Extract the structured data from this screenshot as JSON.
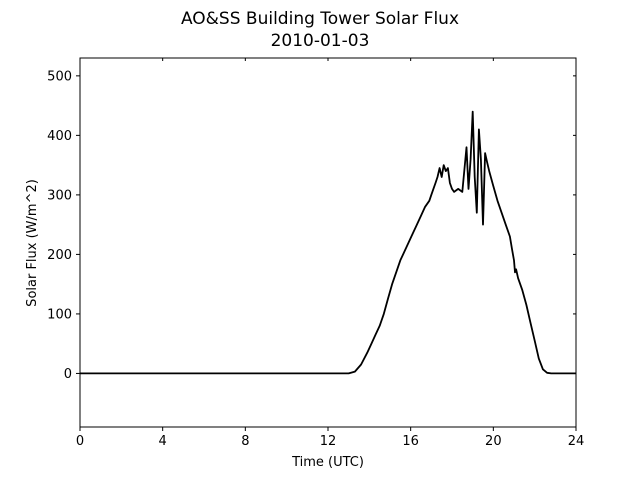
{
  "chart_data": {
    "type": "line",
    "title": "AO&SS Building Tower Solar Flux",
    "subtitle": "2010-01-03",
    "xlabel": "Time (UTC)",
    "ylabel": "Solar Flux (W/m^2)",
    "xlim": [
      0,
      24
    ],
    "ylim": [
      -90,
      530
    ],
    "xticks": [
      0,
      4,
      8,
      12,
      16,
      20,
      24
    ],
    "yticks": [
      0,
      100,
      200,
      300,
      400,
      500
    ],
    "grid": false,
    "line_color": "#000000",
    "series": [
      {
        "x": [
          0,
          13.0,
          13.3,
          13.6,
          13.9,
          14.1,
          14.3,
          14.5,
          14.7,
          14.9,
          15.1,
          15.3,
          15.5,
          15.7,
          15.9,
          16.1,
          16.3,
          16.5,
          16.7,
          16.9,
          17.0,
          17.1,
          17.2,
          17.3,
          17.4,
          17.5,
          17.6,
          17.7,
          17.8,
          17.9,
          18.0,
          18.1,
          18.3,
          18.5,
          18.7,
          18.8,
          18.9,
          19.0,
          19.1,
          19.2,
          19.3,
          19.4,
          19.5,
          19.6,
          19.7,
          19.8,
          20.0,
          20.2,
          20.4,
          20.6,
          20.8,
          20.9,
          21.0,
          21.05,
          21.1,
          21.2,
          21.4,
          21.6,
          21.8,
          22.0,
          22.2,
          22.4,
          22.6,
          22.8,
          23.0,
          24
        ],
        "y": [
          0,
          0,
          3,
          15,
          35,
          50,
          65,
          80,
          100,
          125,
          150,
          170,
          190,
          205,
          220,
          235,
          250,
          265,
          280,
          290,
          300,
          310,
          320,
          330,
          345,
          330,
          350,
          340,
          345,
          320,
          310,
          305,
          310,
          305,
          380,
          310,
          360,
          440,
          330,
          270,
          410,
          360,
          250,
          370,
          355,
          340,
          315,
          290,
          270,
          250,
          230,
          210,
          190,
          170,
          175,
          160,
          140,
          115,
          85,
          55,
          25,
          7,
          1,
          0,
          0,
          0
        ]
      }
    ]
  }
}
